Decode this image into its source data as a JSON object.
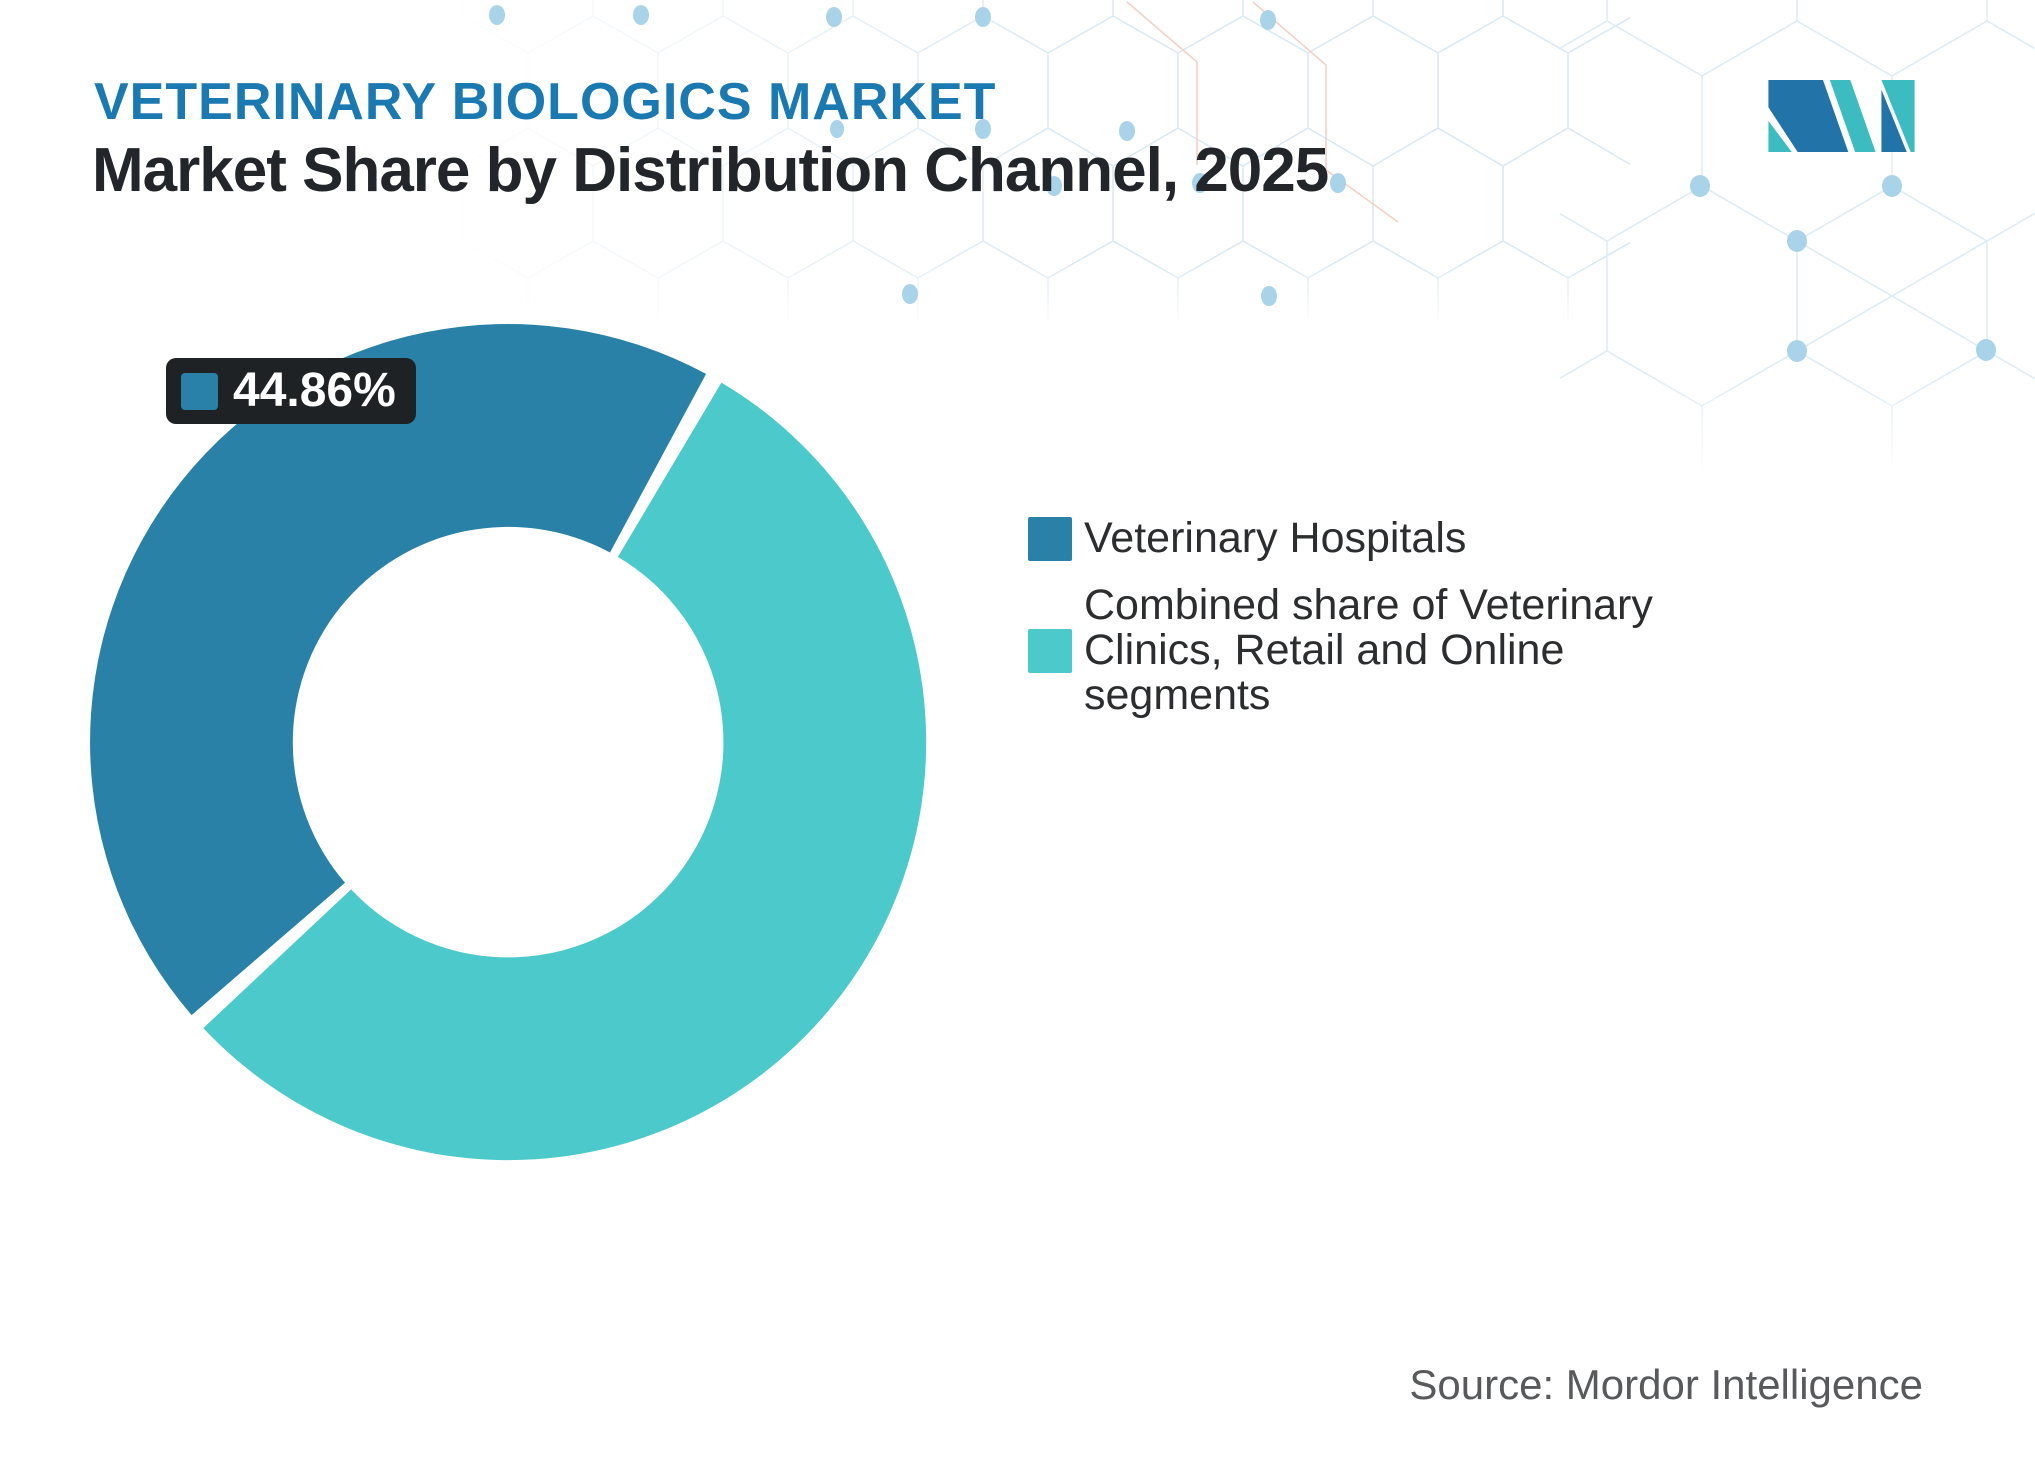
{
  "header": {
    "eyebrow": "VETERINARY BIOLOGICS MARKET",
    "title": "Market Share by Distribution Channel, 2025"
  },
  "logo": {
    "name": "Mordor Intelligence",
    "colors": {
      "blue": "#2273a8",
      "teal": "#3cbcc0"
    }
  },
  "chart_data": {
    "type": "pie",
    "variant": "donut",
    "title": "Market Share by Distribution Channel, 2025",
    "categories": [
      "Veterinary Hospitals",
      "Combined share of Veterinary Clinics, Retail and Online segments"
    ],
    "values": [
      44.86,
      55.14
    ],
    "unit": "%",
    "colors": [
      "#2a81a8",
      "#4cc9cb"
    ],
    "start_angle_deg": 228,
    "gap_deg": 2.4,
    "inner_radius_ratio": 0.515,
    "legend_position": "right",
    "data_labels": [
      {
        "series_index": 0,
        "text": "44.86%"
      }
    ]
  },
  "data_label": {
    "text": "44.86%"
  },
  "legend": {
    "items": [
      {
        "label": "Veterinary Hospitals",
        "lines": [
          "Veterinary Hospitals"
        ],
        "color": "#2a81a8"
      },
      {
        "label": "Combined share of Veterinary Clinics, Retail and Online segments",
        "lines": [
          "Combined share of Veterinary",
          "Clinics, Retail and Online",
          "segments"
        ],
        "color": "#4cc9cb"
      }
    ]
  },
  "source": {
    "text": "Source: Mordor Intelligence"
  }
}
